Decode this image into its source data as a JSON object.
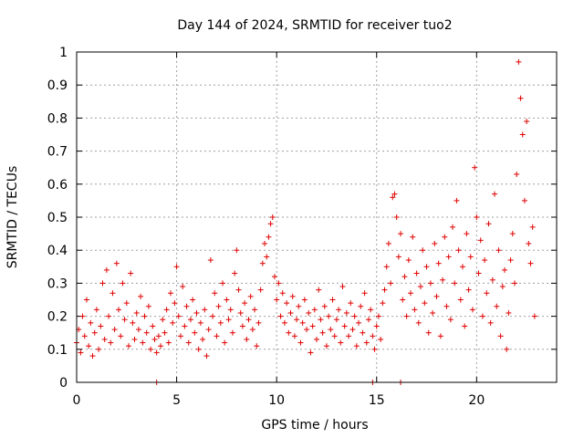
{
  "chart_data": {
    "type": "scatter",
    "title": "Day 144 of 2024, SRMTID for receiver tuo2",
    "xlabel": "GPS time / hours",
    "ylabel": "SRMTID / TECUs",
    "xlim": [
      0,
      24
    ],
    "ylim": [
      0,
      1
    ],
    "x_ticks": [
      0,
      5,
      10,
      15,
      20
    ],
    "y_ticks": [
      0,
      0.1,
      0.2,
      0.3,
      0.4,
      0.5,
      0.6,
      0.7,
      0.8,
      0.9,
      1
    ],
    "grid": true,
    "marker": "+",
    "colors": {
      "points": "#e00000",
      "grid": "#a0a0a0",
      "axis": "#000000"
    },
    "series": [
      {
        "name": "SRMTID",
        "points": [
          [
            0.0,
            0.12
          ],
          [
            0.1,
            0.16
          ],
          [
            0.2,
            0.09
          ],
          [
            0.3,
            0.2
          ],
          [
            0.4,
            0.14
          ],
          [
            0.5,
            0.25
          ],
          [
            0.6,
            0.11
          ],
          [
            0.7,
            0.18
          ],
          [
            0.8,
            0.08
          ],
          [
            0.9,
            0.15
          ],
          [
            1.0,
            0.22
          ],
          [
            1.1,
            0.1
          ],
          [
            1.2,
            0.17
          ],
          [
            1.3,
            0.3
          ],
          [
            1.4,
            0.13
          ],
          [
            1.5,
            0.34
          ],
          [
            1.6,
            0.2
          ],
          [
            1.7,
            0.12
          ],
          [
            1.8,
            0.27
          ],
          [
            1.9,
            0.16
          ],
          [
            2.0,
            0.36
          ],
          [
            2.1,
            0.22
          ],
          [
            2.2,
            0.14
          ],
          [
            2.3,
            0.3
          ],
          [
            2.4,
            0.19
          ],
          [
            2.5,
            0.24
          ],
          [
            2.6,
            0.11
          ],
          [
            2.7,
            0.33
          ],
          [
            2.8,
            0.18
          ],
          [
            2.9,
            0.13
          ],
          [
            3.0,
            0.21
          ],
          [
            3.1,
            0.16
          ],
          [
            3.2,
            0.26
          ],
          [
            3.3,
            0.12
          ],
          [
            3.4,
            0.2
          ],
          [
            3.5,
            0.15
          ],
          [
            3.6,
            0.23
          ],
          [
            3.7,
            0.1
          ],
          [
            3.8,
            0.17
          ],
          [
            3.9,
            0.13
          ],
          [
            4.0,
            0.09
          ],
          [
            4.1,
            0.14
          ],
          [
            4.2,
            0.11
          ],
          [
            4.3,
            0.19
          ],
          [
            4.4,
            0.15
          ],
          [
            4.5,
            0.22
          ],
          [
            4.6,
            0.12
          ],
          [
            4.7,
            0.27
          ],
          [
            4.8,
            0.18
          ],
          [
            4.9,
            0.24
          ],
          [
            5.0,
            0.35
          ],
          [
            5.1,
            0.2
          ],
          [
            5.2,
            0.14
          ],
          [
            5.3,
            0.29
          ],
          [
            5.4,
            0.17
          ],
          [
            5.5,
            0.23
          ],
          [
            5.6,
            0.12
          ],
          [
            5.7,
            0.19
          ],
          [
            5.8,
            0.25
          ],
          [
            5.9,
            0.15
          ],
          [
            6.0,
            0.21
          ],
          [
            6.1,
            0.1
          ],
          [
            6.2,
            0.18
          ],
          [
            6.3,
            0.13
          ],
          [
            6.4,
            0.22
          ],
          [
            6.5,
            0.08
          ],
          [
            6.6,
            0.16
          ],
          [
            6.7,
            0.37
          ],
          [
            6.8,
            0.2
          ],
          [
            6.9,
            0.27
          ],
          [
            7.0,
            0.14
          ],
          [
            7.1,
            0.23
          ],
          [
            7.2,
            0.18
          ],
          [
            7.3,
            0.3
          ],
          [
            7.4,
            0.12
          ],
          [
            7.5,
            0.25
          ],
          [
            7.6,
            0.19
          ],
          [
            7.7,
            0.22
          ],
          [
            7.8,
            0.15
          ],
          [
            7.9,
            0.33
          ],
          [
            8.0,
            0.4
          ],
          [
            8.1,
            0.28
          ],
          [
            8.2,
            0.21
          ],
          [
            8.3,
            0.17
          ],
          [
            8.4,
            0.24
          ],
          [
            8.5,
            0.13
          ],
          [
            8.6,
            0.19
          ],
          [
            8.7,
            0.26
          ],
          [
            8.8,
            0.16
          ],
          [
            8.9,
            0.22
          ],
          [
            9.0,
            0.11
          ],
          [
            9.1,
            0.18
          ],
          [
            9.2,
            0.28
          ],
          [
            9.3,
            0.36
          ],
          [
            9.4,
            0.42
          ],
          [
            9.5,
            0.38
          ],
          [
            9.6,
            0.44
          ],
          [
            9.7,
            0.48
          ],
          [
            9.8,
            0.5
          ],
          [
            9.9,
            0.32
          ],
          [
            10.0,
            0.25
          ],
          [
            10.1,
            0.3
          ],
          [
            10.2,
            0.2
          ],
          [
            10.3,
            0.27
          ],
          [
            10.4,
            0.18
          ],
          [
            10.5,
            0.24
          ],
          [
            10.6,
            0.15
          ],
          [
            10.7,
            0.21
          ],
          [
            10.8,
            0.26
          ],
          [
            10.9,
            0.14
          ],
          [
            11.0,
            0.19
          ],
          [
            11.1,
            0.23
          ],
          [
            11.2,
            0.12
          ],
          [
            11.3,
            0.18
          ],
          [
            11.4,
            0.25
          ],
          [
            11.5,
            0.16
          ],
          [
            11.6,
            0.21
          ],
          [
            11.7,
            0.09
          ],
          [
            11.8,
            0.17
          ],
          [
            11.9,
            0.22
          ],
          [
            12.0,
            0.13
          ],
          [
            12.1,
            0.28
          ],
          [
            12.2,
            0.19
          ],
          [
            12.3,
            0.15
          ],
          [
            12.4,
            0.23
          ],
          [
            12.5,
            0.11
          ],
          [
            12.6,
            0.2
          ],
          [
            12.7,
            0.16
          ],
          [
            12.8,
            0.25
          ],
          [
            12.9,
            0.14
          ],
          [
            13.0,
            0.19
          ],
          [
            13.1,
            0.22
          ],
          [
            13.2,
            0.12
          ],
          [
            13.3,
            0.29
          ],
          [
            13.4,
            0.17
          ],
          [
            13.5,
            0.21
          ],
          [
            13.6,
            0.14
          ],
          [
            13.7,
            0.24
          ],
          [
            13.8,
            0.16
          ],
          [
            13.9,
            0.2
          ],
          [
            14.0,
            0.11
          ],
          [
            14.1,
            0.18
          ],
          [
            14.2,
            0.23
          ],
          [
            14.3,
            0.15
          ],
          [
            14.4,
            0.27
          ],
          [
            14.5,
            0.12
          ],
          [
            14.6,
            0.19
          ],
          [
            14.7,
            0.22
          ],
          [
            14.8,
            0.14
          ],
          [
            14.9,
            0.1
          ],
          [
            15.0,
            0.17
          ],
          [
            15.1,
            0.2
          ],
          [
            15.2,
            0.13
          ],
          [
            15.3,
            0.24
          ],
          [
            15.4,
            0.28
          ],
          [
            15.5,
            0.35
          ],
          [
            15.6,
            0.42
          ],
          [
            15.7,
            0.3
          ],
          [
            15.8,
            0.56
          ],
          [
            15.9,
            0.57
          ],
          [
            16.0,
            0.5
          ],
          [
            16.1,
            0.38
          ],
          [
            16.2,
            0.45
          ],
          [
            16.3,
            0.25
          ],
          [
            16.4,
            0.32
          ],
          [
            16.5,
            0.2
          ],
          [
            16.6,
            0.37
          ],
          [
            16.7,
            0.27
          ],
          [
            16.8,
            0.44
          ],
          [
            16.9,
            0.22
          ],
          [
            17.0,
            0.33
          ],
          [
            17.1,
            0.18
          ],
          [
            17.2,
            0.29
          ],
          [
            17.3,
            0.4
          ],
          [
            17.4,
            0.24
          ],
          [
            17.5,
            0.35
          ],
          [
            17.6,
            0.15
          ],
          [
            17.7,
            0.3
          ],
          [
            17.8,
            0.21
          ],
          [
            17.9,
            0.42
          ],
          [
            18.0,
            0.26
          ],
          [
            18.1,
            0.36
          ],
          [
            18.2,
            0.14
          ],
          [
            18.3,
            0.31
          ],
          [
            18.4,
            0.44
          ],
          [
            18.5,
            0.23
          ],
          [
            18.6,
            0.38
          ],
          [
            18.7,
            0.19
          ],
          [
            18.8,
            0.47
          ],
          [
            18.9,
            0.3
          ],
          [
            19.0,
            0.55
          ],
          [
            19.1,
            0.4
          ],
          [
            19.2,
            0.25
          ],
          [
            19.3,
            0.35
          ],
          [
            19.4,
            0.17
          ],
          [
            19.5,
            0.45
          ],
          [
            19.6,
            0.28
          ],
          [
            19.7,
            0.38
          ],
          [
            19.8,
            0.22
          ],
          [
            19.9,
            0.65
          ],
          [
            20.0,
            0.5
          ],
          [
            20.1,
            0.33
          ],
          [
            20.2,
            0.43
          ],
          [
            20.3,
            0.2
          ],
          [
            20.4,
            0.37
          ],
          [
            20.5,
            0.27
          ],
          [
            20.6,
            0.48
          ],
          [
            20.7,
            0.18
          ],
          [
            20.8,
            0.31
          ],
          [
            20.9,
            0.57
          ],
          [
            21.0,
            0.23
          ],
          [
            21.1,
            0.4
          ],
          [
            21.2,
            0.14
          ],
          [
            21.3,
            0.29
          ],
          [
            21.4,
            0.34
          ],
          [
            21.5,
            0.1
          ],
          [
            21.6,
            0.21
          ],
          [
            21.7,
            0.37
          ],
          [
            21.8,
            0.45
          ],
          [
            21.9,
            0.3
          ],
          [
            22.0,
            0.63
          ],
          [
            22.1,
            0.97
          ],
          [
            22.2,
            0.86
          ],
          [
            22.3,
            0.75
          ],
          [
            22.4,
            0.55
          ],
          [
            22.5,
            0.79
          ],
          [
            22.6,
            0.42
          ],
          [
            22.7,
            0.36
          ],
          [
            22.8,
            0.47
          ],
          [
            22.9,
            0.2
          ],
          [
            4.0,
            0.0
          ],
          [
            14.8,
            0.0
          ],
          [
            16.2,
            0.0
          ]
        ]
      }
    ]
  }
}
